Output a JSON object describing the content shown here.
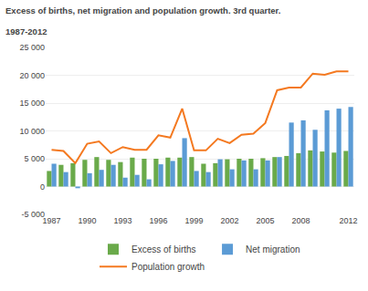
{
  "chart_data": {
    "type": "bar",
    "title": "Excess of births, net migration and population growth. 3rd quarter.",
    "subtitle": "1987-2012",
    "categories": [
      "1987",
      null,
      null,
      "1990",
      null,
      null,
      "1993",
      null,
      null,
      "1996",
      null,
      null,
      "1999",
      null,
      null,
      "2002",
      null,
      null,
      "2005",
      null,
      null,
      "2008",
      null,
      null,
      null,
      "2012"
    ],
    "series": [
      {
        "name": "Excess of births",
        "type": "bar",
        "color": "#6aaa4a",
        "values": [
          2800,
          3900,
          4200,
          4800,
          5300,
          4800,
          4400,
          5200,
          5000,
          5000,
          5200,
          5200,
          5300,
          4100,
          4200,
          4900,
          5000,
          5000,
          5100,
          5300,
          5500,
          6000,
          6500,
          6300,
          6100,
          6400
        ]
      },
      {
        "name": "Net migration",
        "type": "bar",
        "color": "#5b9bd5",
        "values": [
          4100,
          2600,
          -300,
          2400,
          3000,
          3900,
          1600,
          2100,
          1300,
          4000,
          4600,
          8700,
          2800,
          2600,
          4900,
          3100,
          4700,
          3100,
          4700,
          5300,
          11500,
          11900,
          10200,
          13700,
          14000,
          14300
        ]
      },
      {
        "name": "Population growth",
        "type": "line",
        "color": "#f47920",
        "values": [
          6600,
          6400,
          4200,
          7700,
          8100,
          6000,
          7100,
          6600,
          6600,
          9200,
          8800,
          14000,
          6500,
          6500,
          8600,
          7800,
          9300,
          9500,
          11400,
          17300,
          17800,
          17800,
          20300,
          20100,
          20700,
          20700
        ]
      }
    ],
    "ylim": [
      -5000,
      25000
    ],
    "yticks": [
      {
        "value": -5000,
        "label": "-5 000"
      },
      0,
      {
        "value": 5000,
        "label": "5 000"
      },
      {
        "value": 10000,
        "label": "10 000"
      },
      {
        "value": 15000,
        "label": "15 000"
      },
      {
        "value": 20000,
        "label": "20 000"
      },
      {
        "value": 25000,
        "label": "25 000"
      }
    ],
    "grid": true,
    "legend": "bottom"
  }
}
